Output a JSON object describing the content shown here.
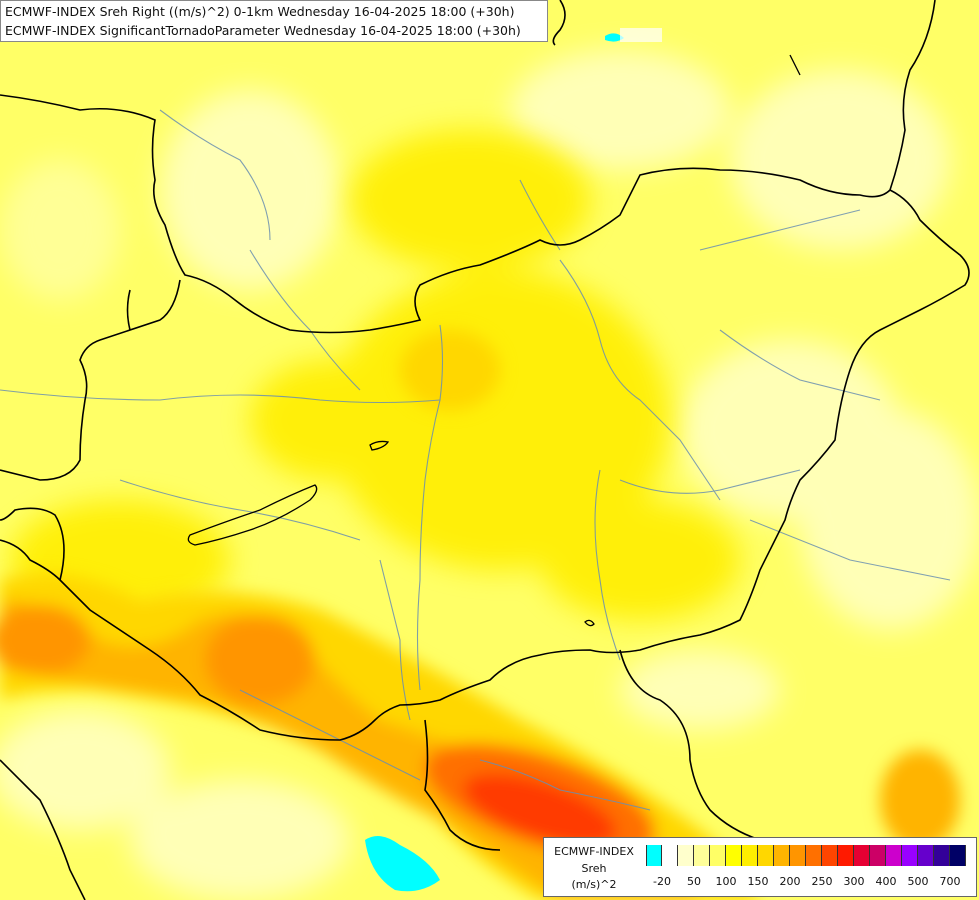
{
  "title": {
    "line1": "ECMWF-INDEX Sreh Right ((m/s)^2) 0-1km Wednesday 16-04-2025 18:00 (+30h)",
    "line2": "ECMWF-INDEX SignificantTornadoParameter Wednesday 16-04-2025 18:00 (+30h)"
  },
  "legend": {
    "line1": "ECMWF-INDEX",
    "line2": "Sreh",
    "line3": "(m/s)^2",
    "colors": [
      "#00ffff",
      "#ffffff",
      "#ffffcc",
      "#ffff99",
      "#ffff66",
      "#ffff00",
      "#ffee00",
      "#ffd700",
      "#ffb400",
      "#ff9500",
      "#ff7000",
      "#ff4500",
      "#ff1a00",
      "#e60033",
      "#cc0066",
      "#cc00cc",
      "#9900ff",
      "#6600cc",
      "#330099",
      "#000066"
    ],
    "ticks": [
      "-20",
      "50",
      "100",
      "150",
      "200",
      "250",
      "300",
      "400",
      "500",
      "700"
    ]
  },
  "map_fields": {
    "background_color": "#ffff66",
    "low_color": "#ffffbb",
    "mid_color": "#ffee00",
    "high_color": "#ffb400",
    "max_color": "#ff3b00",
    "negative_color": "#00ffff",
    "border_color": "#000000",
    "river_color": "#6a8fb0"
  }
}
